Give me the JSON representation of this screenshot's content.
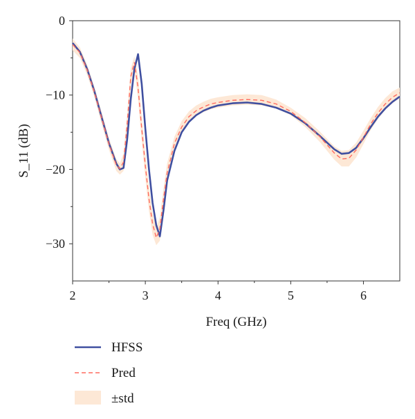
{
  "chart_data": {
    "type": "line",
    "xlabel": "Freq (GHz)",
    "ylabel": "S_11 (dB)",
    "xlim": [
      2,
      6.5
    ],
    "ylim": [
      -35,
      0
    ],
    "xticks": [
      2,
      3,
      4,
      5,
      6
    ],
    "yticks": [
      0,
      -10,
      -20,
      -30
    ],
    "grid": false,
    "legend_position": "bottom-left, below plot",
    "series": [
      {
        "name": "HFSS",
        "style": "solid",
        "color": "#3f4fa0",
        "x": [
          2.0,
          2.1,
          2.2,
          2.3,
          2.4,
          2.5,
          2.6,
          2.65,
          2.7,
          2.75,
          2.8,
          2.85,
          2.9,
          2.95,
          3.0,
          3.05,
          3.1,
          3.15,
          3.2,
          3.25,
          3.3,
          3.4,
          3.5,
          3.6,
          3.7,
          3.8,
          3.9,
          4.0,
          4.2,
          4.4,
          4.6,
          4.8,
          5.0,
          5.2,
          5.4,
          5.6,
          5.7,
          5.8,
          5.9,
          6.0,
          6.1,
          6.2,
          6.3,
          6.4,
          6.5
        ],
        "y": [
          -3.0,
          -4.2,
          -6.5,
          -9.5,
          -13.0,
          -16.5,
          -19.2,
          -20.0,
          -19.8,
          -16.0,
          -10.5,
          -6.5,
          -4.5,
          -8.5,
          -14.5,
          -20.0,
          -24.5,
          -27.5,
          -29.0,
          -25.5,
          -21.5,
          -17.5,
          -15.0,
          -13.6,
          -12.7,
          -12.1,
          -11.7,
          -11.4,
          -11.1,
          -11.0,
          -11.2,
          -11.7,
          -12.5,
          -13.8,
          -15.5,
          -17.3,
          -17.9,
          -17.8,
          -17.1,
          -15.8,
          -14.3,
          -12.9,
          -11.8,
          -10.9,
          -10.2
        ]
      },
      {
        "name": "Pred",
        "style": "dashed",
        "color": "#ff6a5e",
        "x": [
          2.0,
          2.1,
          2.2,
          2.3,
          2.4,
          2.5,
          2.6,
          2.65,
          2.7,
          2.75,
          2.8,
          2.85,
          2.9,
          2.95,
          3.0,
          3.05,
          3.1,
          3.15,
          3.2,
          3.25,
          3.3,
          3.4,
          3.5,
          3.6,
          3.7,
          3.8,
          3.9,
          4.0,
          4.2,
          4.4,
          4.6,
          4.8,
          5.0,
          5.2,
          5.4,
          5.6,
          5.7,
          5.8,
          5.9,
          6.0,
          6.1,
          6.2,
          6.3,
          6.4,
          6.5
        ],
        "y": [
          -3.2,
          -4.3,
          -6.6,
          -9.6,
          -13.1,
          -16.6,
          -19.4,
          -19.9,
          -19.0,
          -14.0,
          -7.5,
          -5.6,
          -9.0,
          -14.5,
          -19.5,
          -24.0,
          -27.3,
          -29.2,
          -28.0,
          -24.0,
          -20.5,
          -16.5,
          -14.3,
          -12.9,
          -12.1,
          -11.6,
          -11.2,
          -11.0,
          -10.7,
          -10.6,
          -10.7,
          -11.2,
          -12.2,
          -13.7,
          -15.6,
          -17.8,
          -18.6,
          -18.5,
          -17.4,
          -15.7,
          -13.9,
          -12.4,
          -11.2,
          -10.3,
          -9.7
        ]
      }
    ],
    "band": {
      "name": "±std",
      "color": "#fde8d6",
      "x": [
        2.0,
        2.1,
        2.2,
        2.3,
        2.4,
        2.5,
        2.6,
        2.65,
        2.7,
        2.75,
        2.8,
        2.85,
        2.9,
        2.95,
        3.0,
        3.05,
        3.1,
        3.15,
        3.2,
        3.25,
        3.3,
        3.4,
        3.5,
        3.6,
        3.7,
        3.8,
        3.9,
        4.0,
        4.2,
        4.4,
        4.6,
        4.8,
        5.0,
        5.2,
        5.4,
        5.6,
        5.7,
        5.8,
        5.9,
        6.0,
        6.1,
        6.2,
        6.3,
        6.4,
        6.5
      ],
      "upper": [
        -2.4,
        -3.6,
        -5.9,
        -8.9,
        -12.3,
        -15.8,
        -18.6,
        -19.2,
        -17.8,
        -12.5,
        -6.4,
        -4.8,
        -7.4,
        -12.8,
        -17.8,
        -22.4,
        -25.8,
        -27.9,
        -26.4,
        -22.5,
        -19.2,
        -15.6,
        -13.5,
        -12.2,
        -11.4,
        -10.9,
        -10.5,
        -10.3,
        -10.0,
        -9.9,
        -10.0,
        -10.6,
        -11.7,
        -13.1,
        -14.9,
        -16.9,
        -17.5,
        -17.4,
        -16.4,
        -14.8,
        -13.1,
        -11.6,
        -10.4,
        -9.5,
        -9.0
      ],
      "lower": [
        -4.0,
        -5.0,
        -7.3,
        -10.3,
        -13.9,
        -17.4,
        -20.2,
        -20.7,
        -20.2,
        -15.5,
        -8.8,
        -6.6,
        -10.6,
        -16.2,
        -21.2,
        -25.6,
        -28.8,
        -30.2,
        -29.6,
        -25.5,
        -21.8,
        -17.4,
        -15.1,
        -13.6,
        -12.8,
        -12.3,
        -11.9,
        -11.7,
        -11.4,
        -11.3,
        -11.4,
        -11.8,
        -12.7,
        -14.3,
        -16.3,
        -18.7,
        -19.6,
        -19.6,
        -18.4,
        -16.6,
        -14.7,
        -13.2,
        -12.0,
        -11.1,
        -10.4
      ]
    }
  }
}
